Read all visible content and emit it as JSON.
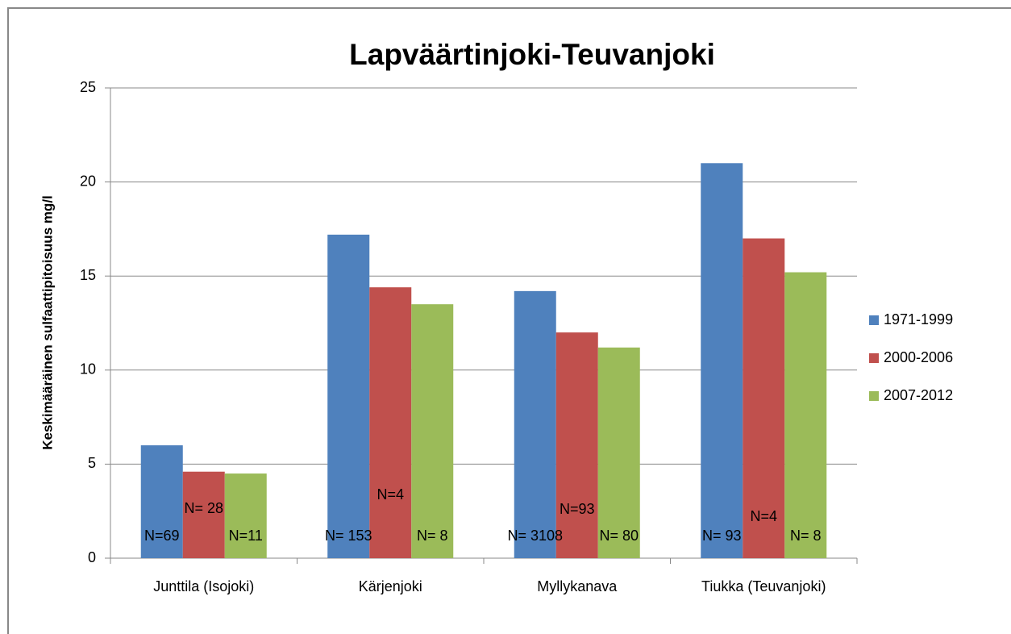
{
  "chart_data": {
    "type": "bar",
    "title": "Lapväärtinjoki-Teuvanjoki",
    "y_label": "Keskimääräinen sulfaattipitoisuus mg/l",
    "categories": [
      "Junttila (Isojoki)",
      "Kärjenjoki",
      "Myllykanava",
      "Tiukka (Teuvanjoki)"
    ],
    "series": [
      {
        "name": "1971-1999",
        "color": "#4f81bd",
        "values": [
          6.0,
          17.2,
          14.2,
          21.0
        ],
        "annotations": [
          "N=69",
          "N= 153",
          "N= 3108",
          "N= 93"
        ]
      },
      {
        "name": "2000-2006",
        "color": "#c0504d",
        "values": [
          4.6,
          14.4,
          12.0,
          17.0
        ],
        "annotations": [
          "N= 28",
          "N=4",
          "N=93",
          "N=4"
        ]
      },
      {
        "name": "2007-2012",
        "color": "#9bbb59",
        "values": [
          4.5,
          13.5,
          11.2,
          15.2
        ],
        "annotations": [
          "N=11",
          "N= 8",
          "N= 80",
          "N= 8"
        ]
      }
    ],
    "ylim": [
      0,
      25
    ],
    "yticks": [
      0,
      5,
      10,
      15,
      20,
      25
    ],
    "grid": true,
    "legend": "right"
  }
}
